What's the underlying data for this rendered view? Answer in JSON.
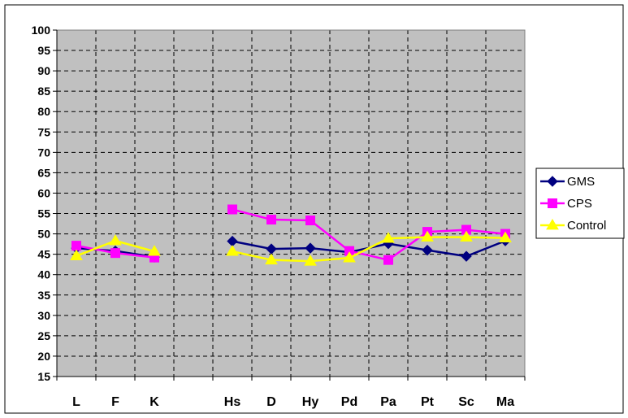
{
  "chart_data": {
    "type": "line",
    "title": "",
    "xlabel": "",
    "ylabel": "",
    "categories": [
      "L",
      "F",
      "K",
      "",
      "Hs",
      "D",
      "Hy",
      "Pd",
      "Pa",
      "Pt",
      "Sc",
      "Ma"
    ],
    "ylim": [
      15,
      100
    ],
    "yticks": [
      15,
      20,
      25,
      30,
      35,
      40,
      45,
      50,
      55,
      60,
      65,
      70,
      75,
      80,
      85,
      90,
      95,
      100
    ],
    "grid": true,
    "legend_position": "right",
    "series": [
      {
        "name": "GMS",
        "color": "#000080",
        "marker": "diamond",
        "values": [
          46.5,
          45.8,
          44.3,
          null,
          48.2,
          46.3,
          46.5,
          45.5,
          47.6,
          46.0,
          44.5,
          48.3
        ]
      },
      {
        "name": "CPS",
        "color": "#FF00FF",
        "marker": "square",
        "values": [
          47.1,
          45.3,
          44.2,
          null,
          56.0,
          53.5,
          53.3,
          45.8,
          43.6,
          50.5,
          51.0,
          50.0
        ]
      },
      {
        "name": "Control",
        "color": "#FFFF00",
        "marker": "triangle",
        "values": [
          44.6,
          48.3,
          45.7,
          null,
          45.7,
          43.6,
          43.3,
          44.1,
          48.9,
          49.2,
          49.2,
          49.0
        ]
      }
    ]
  }
}
